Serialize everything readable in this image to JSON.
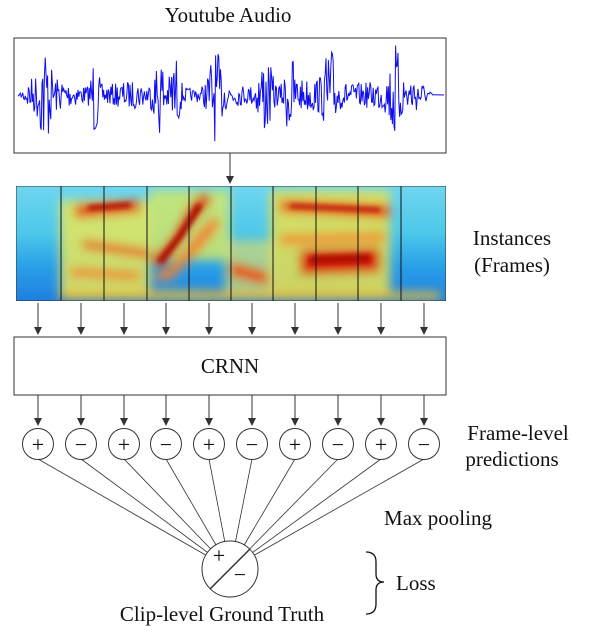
{
  "audio_title": "Youtube Audio",
  "instances_label": [
    "Instances",
    "(Frames)"
  ],
  "model_label": "CRNN",
  "frame_predictions_label": [
    "Frame-level",
    "predictions"
  ],
  "frame_predictions": [
    "+",
    "−",
    "+",
    "−",
    "+",
    "−",
    "+",
    "−",
    "+",
    "−"
  ],
  "pooling_label": "Max pooling",
  "clip_symbols": [
    "+",
    "−"
  ],
  "loss_label": "Loss",
  "ground_truth_label": "Clip-level Ground Truth",
  "colors": {
    "waveform": "#1010ee",
    "stroke": "#333333"
  }
}
